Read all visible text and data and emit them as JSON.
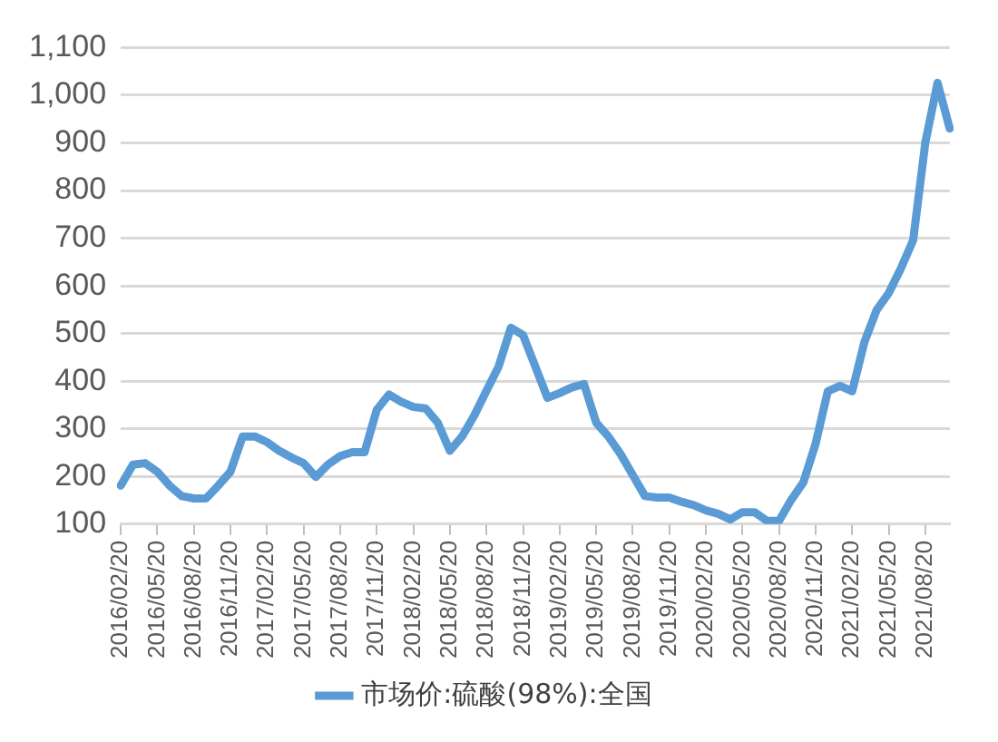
{
  "chart_data": {
    "type": "line",
    "categories": [
      "2016/02/20",
      null,
      null,
      "2016/05/20",
      null,
      null,
      "2016/08/20",
      null,
      null,
      "2016/11/20",
      null,
      null,
      "2017/02/20",
      null,
      null,
      "2017/05/20",
      null,
      null,
      "2017/08/20",
      null,
      null,
      "2017/11/20",
      null,
      null,
      "2018/02/20",
      null,
      null,
      "2018/05/20",
      null,
      null,
      "2018/08/20",
      null,
      null,
      "2018/11/20",
      null,
      null,
      "2019/02/20",
      null,
      null,
      "2019/05/20",
      null,
      null,
      "2019/08/20",
      null,
      null,
      "2019/11/20",
      null,
      null,
      "2020/02/20",
      null,
      null,
      "2020/05/20",
      null,
      null,
      "2020/08/20",
      null,
      null,
      "2020/11/20",
      null,
      null,
      "2021/02/20",
      null,
      null,
      "2021/05/20",
      null,
      null,
      "2021/08/20",
      null,
      null
    ],
    "series": [
      {
        "name": "市场价:硫酸(98%):全国",
        "color": "#5b9bd5",
        "values": [
          181,
          225,
          228,
          210,
          181,
          159,
          154,
          154,
          181,
          210,
          284,
          284,
          272,
          254,
          240,
          228,
          199,
          225,
          243,
          251,
          251,
          340,
          372,
          357,
          346,
          343,
          313,
          254,
          284,
          328,
          380,
          431,
          512,
          497,
          431,
          365,
          375,
          387,
          394,
          313,
          284,
          247,
          203,
          159,
          156,
          156,
          147,
          140,
          129,
          122,
          110,
          125,
          125,
          107,
          107,
          151,
          188,
          269,
          379,
          390,
          379,
          482,
          549,
          585,
          637,
          696,
          901,
          1026,
          930
        ]
      }
    ],
    "ylim": [
      100,
      1100
    ],
    "yticks": [
      100,
      200,
      300,
      400,
      500,
      600,
      700,
      800,
      900,
      {
        "value": 1000,
        "label": "1,000"
      },
      {
        "value": 1100,
        "label": "1,100"
      }
    ],
    "grid": "y",
    "legend": "bottom",
    "marker": "none",
    "line_style": "solid"
  }
}
